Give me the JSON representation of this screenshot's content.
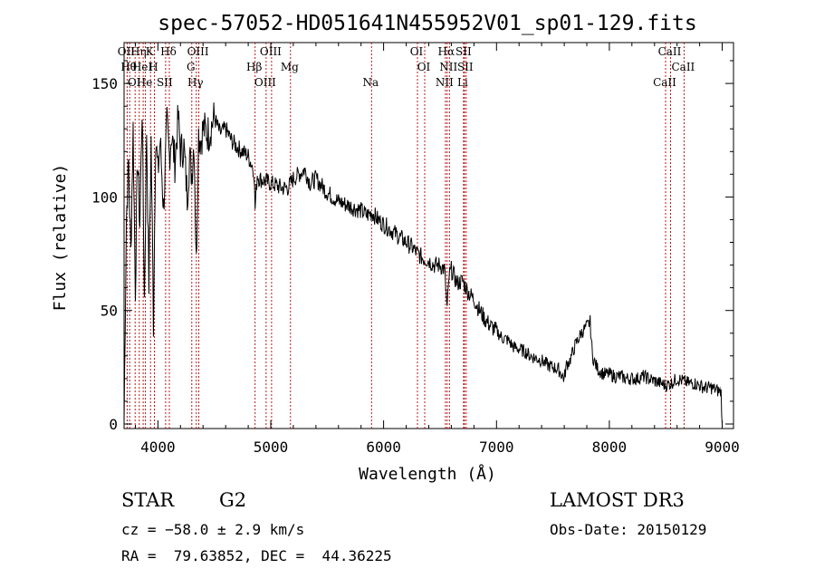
{
  "chart_data": {
    "type": "line",
    "title": "spec-57052-HD051641N455952V01_sp01-129.fits",
    "xlabel": "Wavelength (Å)",
    "ylabel": "Flux (relative)",
    "xlim": [
      3700,
      9100
    ],
    "ylim": [
      -2,
      168
    ],
    "xticks": [
      4000,
      5000,
      6000,
      7000,
      8000,
      9000
    ],
    "yticks": [
      0,
      50,
      100,
      150
    ],
    "series": [
      {
        "name": "spectrum",
        "x": [
          3700,
          3720,
          3740,
          3760,
          3780,
          3800,
          3820,
          3840,
          3860,
          3880,
          3900,
          3920,
          3940,
          3960,
          3980,
          4000,
          4020,
          4050,
          4080,
          4101,
          4120,
          4150,
          4180,
          4200,
          4230,
          4260,
          4280,
          4300,
          4320,
          4340,
          4360,
          4380,
          4400,
          4450,
          4500,
          4550,
          4600,
          4650,
          4700,
          4750,
          4800,
          4850,
          4861,
          4880,
          4900,
          4950,
          5000,
          5050,
          5100,
          5150,
          5200,
          5250,
          5300,
          5350,
          5400,
          5450,
          5500,
          5550,
          5600,
          5650,
          5700,
          5750,
          5800,
          5850,
          5900,
          5950,
          6000,
          6050,
          6100,
          6150,
          6200,
          6250,
          6300,
          6350,
          6400,
          6450,
          6500,
          6540,
          6563,
          6580,
          6600,
          6650,
          6700,
          6750,
          6800,
          6850,
          6900,
          6950,
          7000,
          7050,
          7100,
          7150,
          7200,
          7250,
          7300,
          7350,
          7400,
          7450,
          7500,
          7550,
          7600,
          7620,
          7650,
          7700,
          7750,
          7800,
          7830,
          7850,
          7880,
          7900,
          7950,
          8000,
          8050,
          8100,
          8150,
          8200,
          8250,
          8300,
          8350,
          8400,
          8450,
          8500,
          8550,
          8600,
          8650,
          8700,
          8750,
          8800,
          8850,
          8900,
          8950,
          8990,
          9000
        ],
        "values": [
          0,
          90,
          115,
          75,
          130,
          60,
          118,
          88,
          140,
          55,
          130,
          62,
          125,
          45,
          128,
          110,
          125,
          95,
          132,
          118,
          128,
          115,
          135,
          120,
          122,
          100,
          118,
          110,
          125,
          70,
          128,
          125,
          130,
          128,
          135,
          128,
          130,
          125,
          122,
          120,
          118,
          112,
          95,
          110,
          108,
          107,
          106,
          105,
          104,
          104,
          108,
          110,
          112,
          106,
          108,
          105,
          102,
          100,
          98,
          97,
          96,
          95,
          94,
          92,
          93,
          90,
          88,
          86,
          84,
          82,
          80,
          78,
          75,
          73,
          72,
          70,
          70,
          68,
          50,
          65,
          68,
          62,
          63,
          58,
          55,
          50,
          46,
          43,
          41,
          38,
          37,
          34,
          33,
          32,
          30,
          29,
          28,
          26,
          25,
          24,
          20,
          26,
          28,
          35,
          40,
          43,
          45,
          30,
          26,
          24,
          22,
          22,
          21,
          21,
          20,
          20,
          20,
          21,
          20,
          19,
          18,
          17,
          18,
          20,
          19,
          18,
          18,
          17,
          16,
          16,
          15,
          14,
          0
        ]
      }
    ],
    "lines": [
      {
        "wl": 3727,
        "label": "OII"
      },
      {
        "wl": 3750,
        "label": "Hθ"
      },
      {
        "wl": 3798,
        "label": "OI"
      },
      {
        "wl": 3835,
        "label": "Hη"
      },
      {
        "wl": 3869,
        "label": "HeI"
      },
      {
        "wl": 3889,
        "label": "He"
      },
      {
        "wl": 3934,
        "label": "K"
      },
      {
        "wl": 3969,
        "label": "H"
      },
      {
        "wl": 4068,
        "label": "SII"
      },
      {
        "wl": 4101,
        "label": "Hδ"
      },
      {
        "wl": 4300,
        "label": "G"
      },
      {
        "wl": 4340,
        "label": "Hγ"
      },
      {
        "wl": 4363,
        "label": "OIII"
      },
      {
        "wl": 4861,
        "label": "Hβ"
      },
      {
        "wl": 4959,
        "label": "OIII"
      },
      {
        "wl": 5007,
        "label": "OIII"
      },
      {
        "wl": 5175,
        "label": "Mg"
      },
      {
        "wl": 5893,
        "label": "Na"
      },
      {
        "wl": 6300,
        "label": "OI"
      },
      {
        "wl": 6364,
        "label": "OI"
      },
      {
        "wl": 6548,
        "label": "NII"
      },
      {
        "wl": 6563,
        "label": "Hα"
      },
      {
        "wl": 6583,
        "label": "NII"
      },
      {
        "wl": 6708,
        "label": "Li"
      },
      {
        "wl": 6716,
        "label": "SII"
      },
      {
        "wl": 6731,
        "label": "SII"
      },
      {
        "wl": 8498,
        "label": "CaII"
      },
      {
        "wl": 8542,
        "label": "CaII"
      },
      {
        "wl": 8662,
        "label": "CaII"
      }
    ]
  },
  "info": {
    "object_class": "STAR",
    "subclass": "G2",
    "survey": "LAMOST DR3",
    "cz": "cz = −58.0 ± 2.9 km/s",
    "obs_date": "Obs-Date: 20150129",
    "coords": "RA =  79.63852, DEC =  44.36225"
  }
}
